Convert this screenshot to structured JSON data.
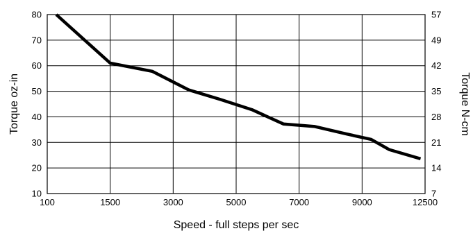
{
  "chart_data": {
    "type": "line",
    "title": "",
    "xlabel": "Speed - full steps per sec",
    "ylabel": "Torque oz-in",
    "ylabel_right": "Torque N-cm",
    "grid": true,
    "x_tick_labels": [
      "100",
      "1500",
      "3000",
      "5000",
      "7000",
      "9000",
      "12500"
    ],
    "y_tick_labels": [
      "10",
      "20",
      "30",
      "40",
      "50",
      "60",
      "70",
      "80"
    ],
    "y_right_tick_labels": [
      "7",
      "14",
      "21",
      "28",
      "35",
      "42",
      "49",
      "57"
    ],
    "ylim": [
      10,
      80
    ],
    "series": [
      {
        "x": [
          "300",
          "1500",
          "2500",
          "3500",
          "4500",
          "5500",
          "6500",
          "7500",
          "8500",
          "9500",
          "10500",
          "12250"
        ],
        "values": [
          80,
          61,
          57.8,
          50.5,
          46.8,
          42.8,
          37.2,
          36.2,
          33.3,
          31.2,
          27.2,
          23.6
        ]
      }
    ]
  }
}
